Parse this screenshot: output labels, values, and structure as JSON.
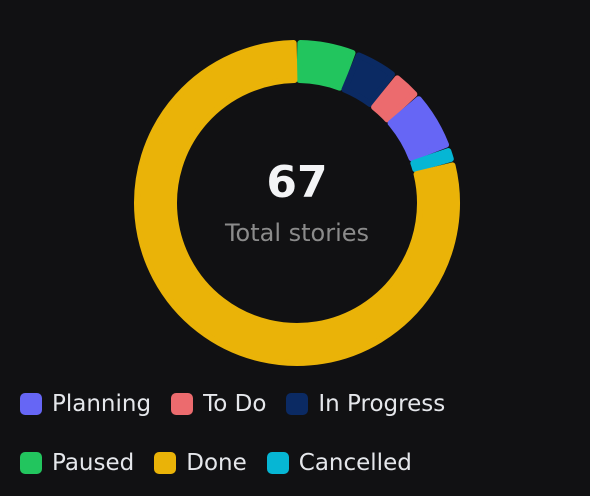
{
  "chart_data": {
    "type": "pie",
    "variant": "donut",
    "center": {
      "total": "67",
      "label": "Total stories"
    },
    "series": [
      {
        "name": "Paused",
        "value": 4,
        "color": "#22c55e"
      },
      {
        "name": "In Progress",
        "value": 3,
        "color": "#0b2a63"
      },
      {
        "name": "To Do",
        "value": 2,
        "color": "#ec6b6e"
      },
      {
        "name": "Planning",
        "value": 4,
        "color": "#6666f5"
      },
      {
        "name": "Cancelled",
        "value": 1,
        "color": "#06b6d4"
      },
      {
        "name": "Done",
        "value": 53,
        "color": "#eab308"
      }
    ],
    "legend_order": [
      "Planning",
      "To Do",
      "In Progress",
      "Paused",
      "Done",
      "Cancelled"
    ],
    "legend_position": "bottom"
  }
}
